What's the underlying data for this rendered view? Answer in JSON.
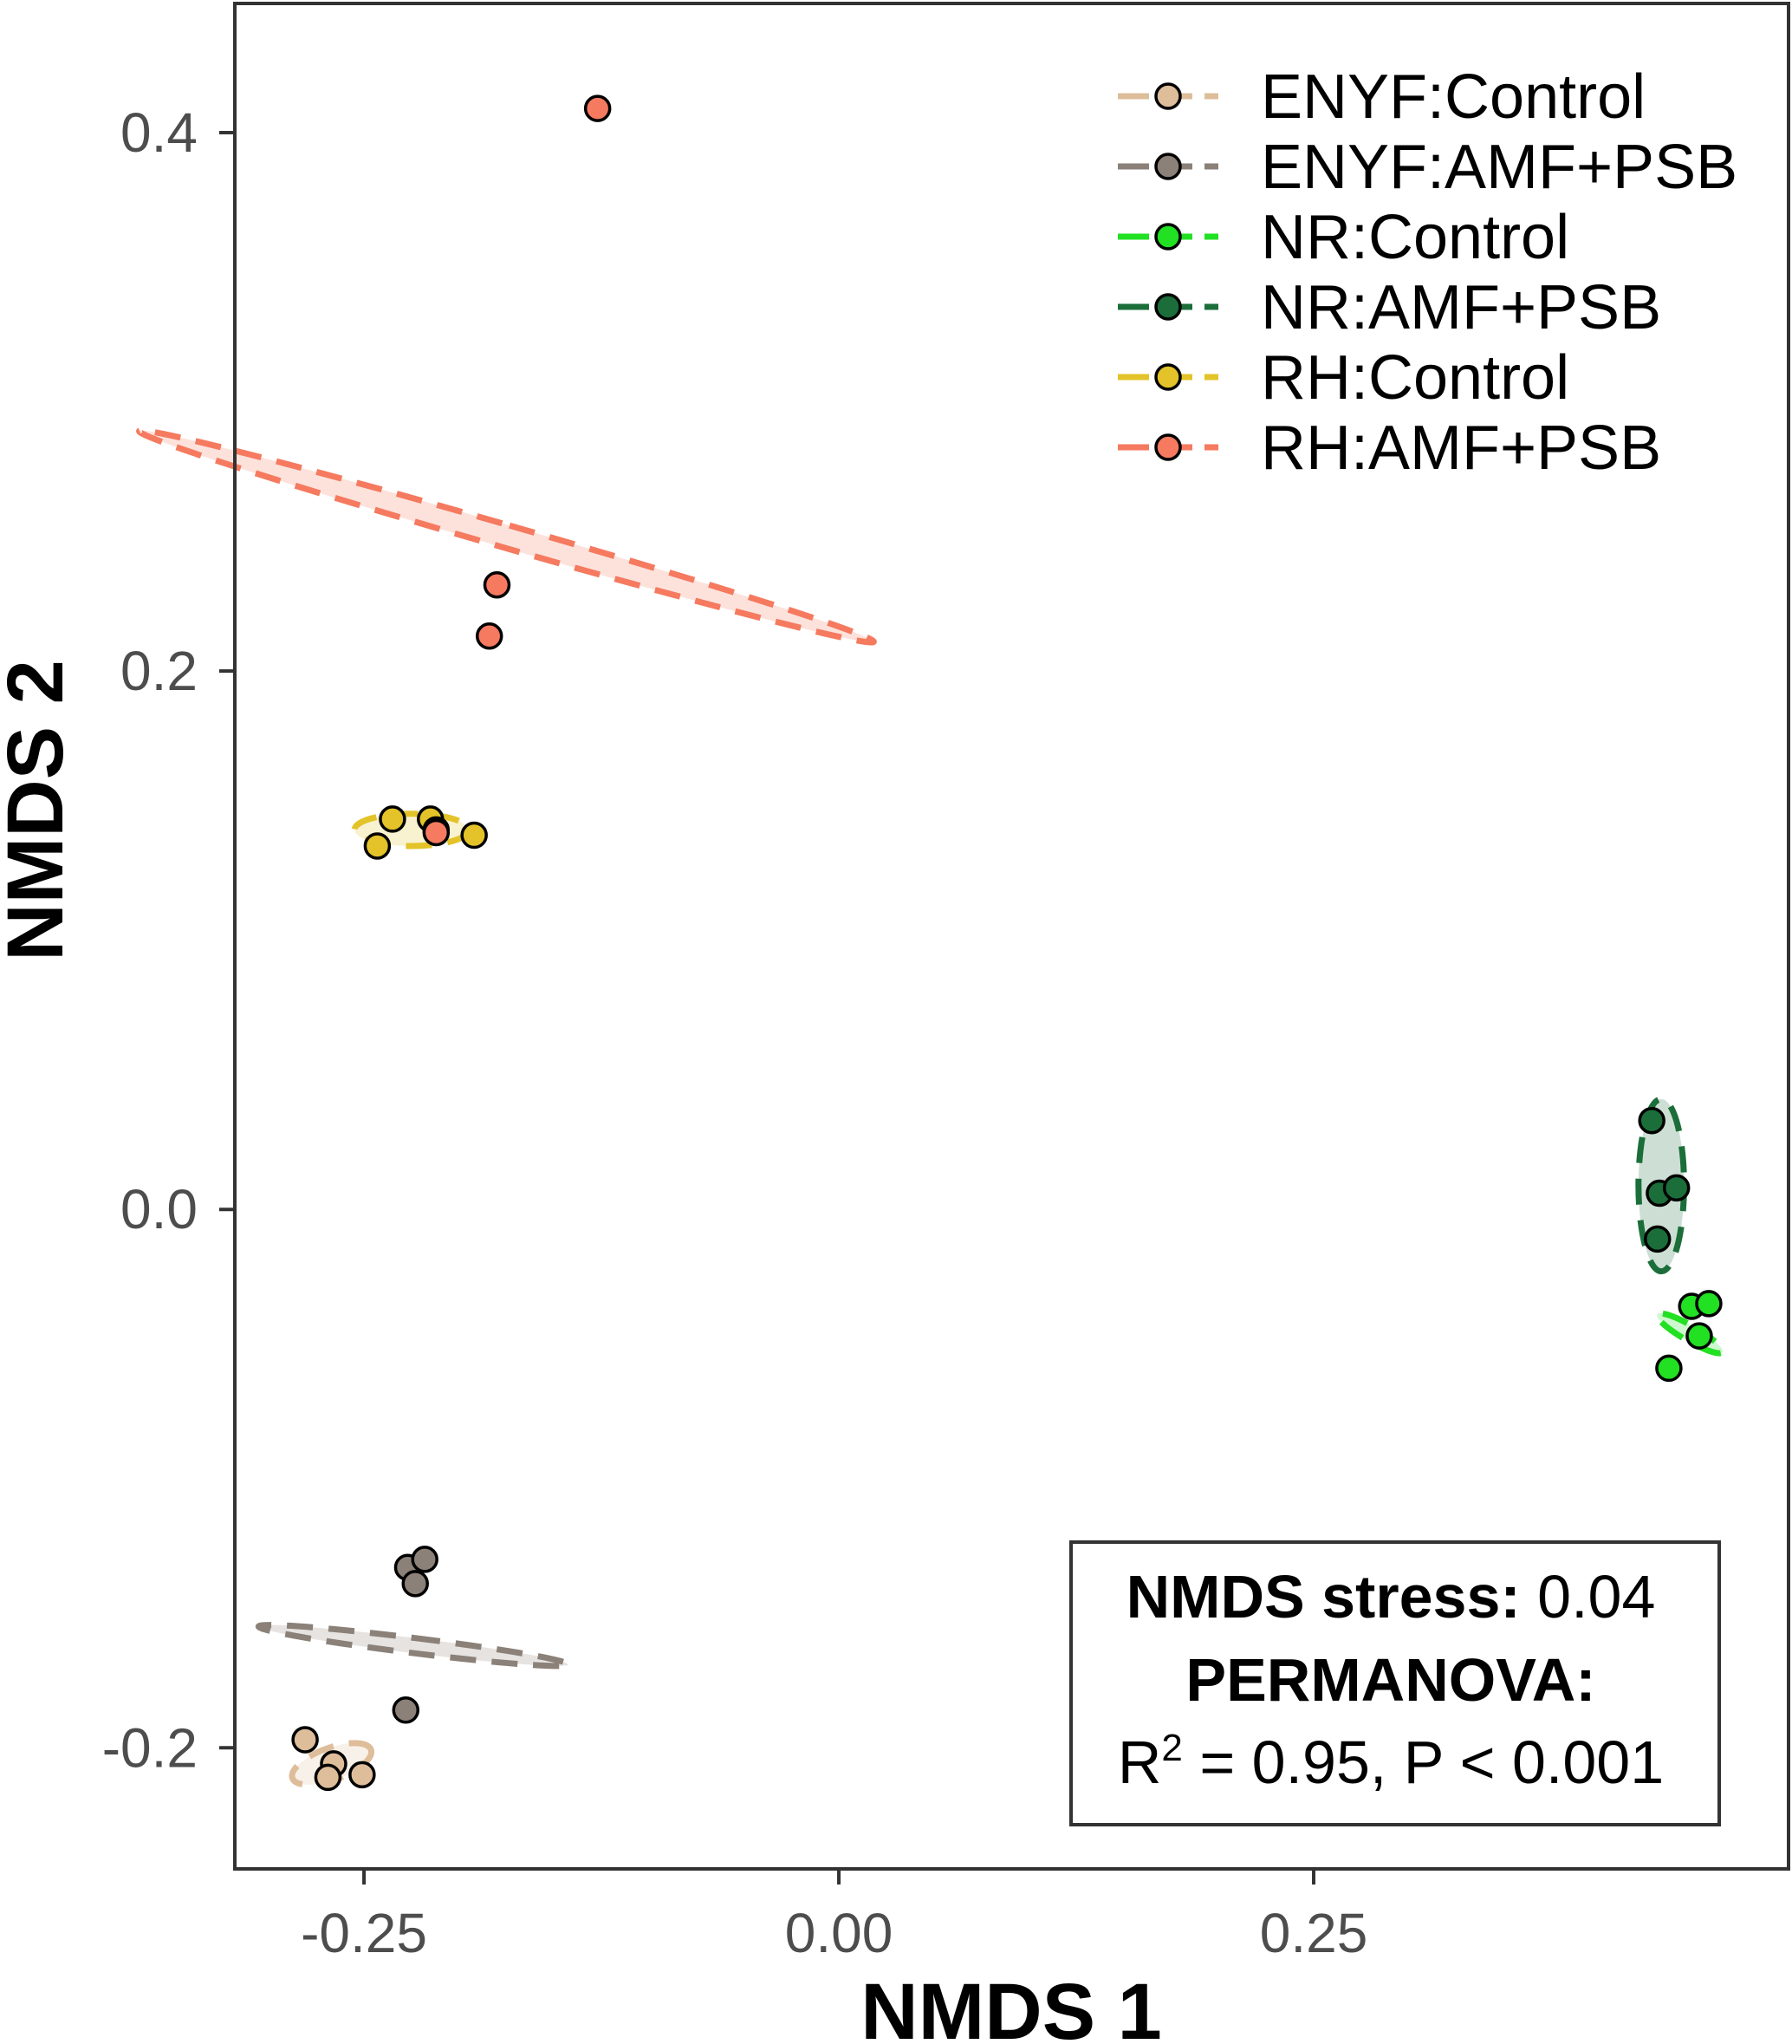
{
  "chart_data": {
    "type": "scatter",
    "xlabel": "NMDS 1",
    "ylabel": "NMDS 2",
    "xlim": [
      -0.318,
      0.5
    ],
    "ylim": [
      -0.245,
      0.448
    ],
    "x_ticks": [
      -0.25,
      0.0,
      0.25
    ],
    "x_tick_labels": [
      "-0.25",
      "0.00",
      "0.25"
    ],
    "y_ticks": [
      -0.2,
      0.0,
      0.2,
      0.4
    ],
    "y_tick_labels": [
      "-0.2",
      "0.0",
      "0.2",
      "0.4"
    ],
    "grid": false,
    "legend_position": "top-right",
    "series": [
      {
        "name": "ENYF:Control",
        "color": "#DEBD9B",
        "points": [
          [
            -0.281,
            -0.197
          ],
          [
            -0.266,
            -0.206
          ],
          [
            -0.269,
            -0.211
          ],
          [
            -0.251,
            -0.21
          ]
        ],
        "ellipse": {
          "center": [
            -0.267,
            -0.206
          ],
          "rx": 0.022,
          "ry": 0.006,
          "angle": -20
        }
      },
      {
        "name": "ENYF:AMF+PSB",
        "color": "#8B8178",
        "points": [
          [
            -0.227,
            -0.133
          ],
          [
            -0.218,
            -0.13
          ],
          [
            -0.223,
            -0.139
          ],
          [
            -0.228,
            -0.186
          ]
        ],
        "ellipse": {
          "center": [
            -0.224,
            -0.162
          ],
          "rx": 0.004,
          "ry": 0.058,
          "angle": -83
        }
      },
      {
        "name": "NR:Control",
        "color": "#22E022",
        "points": [
          [
            0.449,
            -0.036
          ],
          [
            0.458,
            -0.035
          ],
          [
            0.453,
            -0.047
          ],
          [
            0.437,
            -0.059
          ]
        ],
        "ellipse": {
          "center": [
            0.448,
            -0.046
          ],
          "rx": 0.004,
          "ry": 0.014,
          "angle": -60
        }
      },
      {
        "name": "NR:AMF+PSB",
        "color": "#1B6E3A",
        "points": [
          [
            0.428,
            0.033
          ],
          [
            0.432,
            0.006
          ],
          [
            0.441,
            0.008
          ],
          [
            0.431,
            -0.011
          ]
        ],
        "ellipse": {
          "center": [
            0.433,
            0.009
          ],
          "rx": 0.012,
          "ry": 0.032,
          "angle": 0
        }
      },
      {
        "name": "RH:Control",
        "color": "#E3C329",
        "points": [
          [
            -0.243,
            0.135
          ],
          [
            -0.235,
            0.145
          ],
          [
            -0.215,
            0.145
          ],
          [
            -0.212,
            0.141
          ],
          [
            -0.192,
            0.139
          ]
        ],
        "ellipse": {
          "center": [
            -0.225,
            0.141
          ],
          "rx": 0.03,
          "ry": 0.006,
          "angle": 0
        }
      },
      {
        "name": "RH:AMF+PSB",
        "color": "#F57A5F",
        "points": [
          [
            -0.127,
            0.409
          ],
          [
            -0.18,
            0.232
          ],
          [
            -0.184,
            0.213
          ],
          [
            -0.212,
            0.14
          ]
        ],
        "ellipse": {
          "center": [
            -0.175,
            0.25
          ],
          "rx": 0.006,
          "ry": 0.142,
          "angle": -74
        }
      }
    ],
    "annotation": {
      "line1_label": "NMDS stress:",
      "line1_value": " 0.04",
      "line2": "PERMANOVA:",
      "line3_prefix": "R",
      "line3_sup": "2",
      "line3_rest": " = 0.95, P < 0.001"
    }
  }
}
